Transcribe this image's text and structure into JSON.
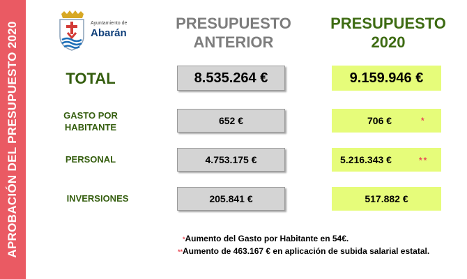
{
  "sidebar": {
    "title": "APROBACIÓN DEL PRESUPUESTO 2020"
  },
  "logo": {
    "small": "Ayuntamiento de",
    "name": "Abarán"
  },
  "columns": {
    "previous": "PRESUPUESTO\nANTERIOR",
    "current": "PRESUPUESTO\n2020"
  },
  "rows": [
    {
      "label": "TOTAL",
      "previous": "8.535.264 €",
      "current": "9.159.946 €",
      "mark": ""
    },
    {
      "label": "GASTO POR\nHABITANTE",
      "previous": "652 €",
      "current": "706 €",
      "mark": "*"
    },
    {
      "label": "PERSONAL",
      "previous": "4.753.175 €",
      "current": "5.216.343 €",
      "mark": "**"
    },
    {
      "label": "INVERSIONES",
      "previous": "205.841 €",
      "current": "517.882 €",
      "mark": ""
    }
  ],
  "notes": [
    {
      "mark": "*",
      "text": "Aumento del Gasto por Habitante en 54€."
    },
    {
      "mark": "**",
      "text": "Aumento de 463.167 € en aplicación de subida salarial estatal."
    }
  ],
  "colors": {
    "sidebar": "#ea5a63",
    "green_box": "#e6fc7a",
    "gray_box": "#d4d4d4",
    "label_green": "#355e0f",
    "asterisk": "#e84a55"
  }
}
